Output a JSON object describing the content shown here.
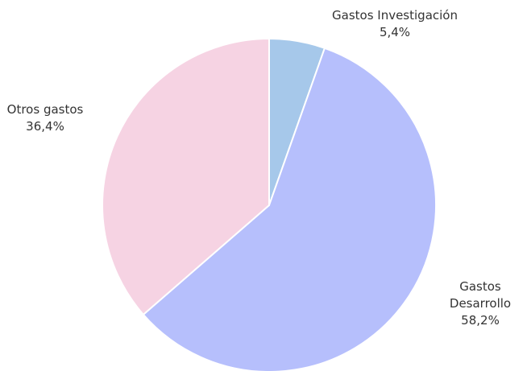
{
  "chart_data": {
    "type": "pie",
    "title": "",
    "slices": [
      {
        "label_lines": [
          "Gastos Investigación"
        ],
        "value": 5.4,
        "value_label": "5,4%",
        "color": "#a6c8ea"
      },
      {
        "label_lines": [
          "Gastos",
          "Desarrollo"
        ],
        "value": 58.2,
        "value_label": "58,2%",
        "color": "#b6bffc"
      },
      {
        "label_lines": [
          "Otros gastos"
        ],
        "value": 36.4,
        "value_label": "36,4%",
        "color": "#f6d3e3"
      }
    ],
    "start_angle_deg": 0,
    "direction": "clockwise",
    "legend": "none"
  }
}
